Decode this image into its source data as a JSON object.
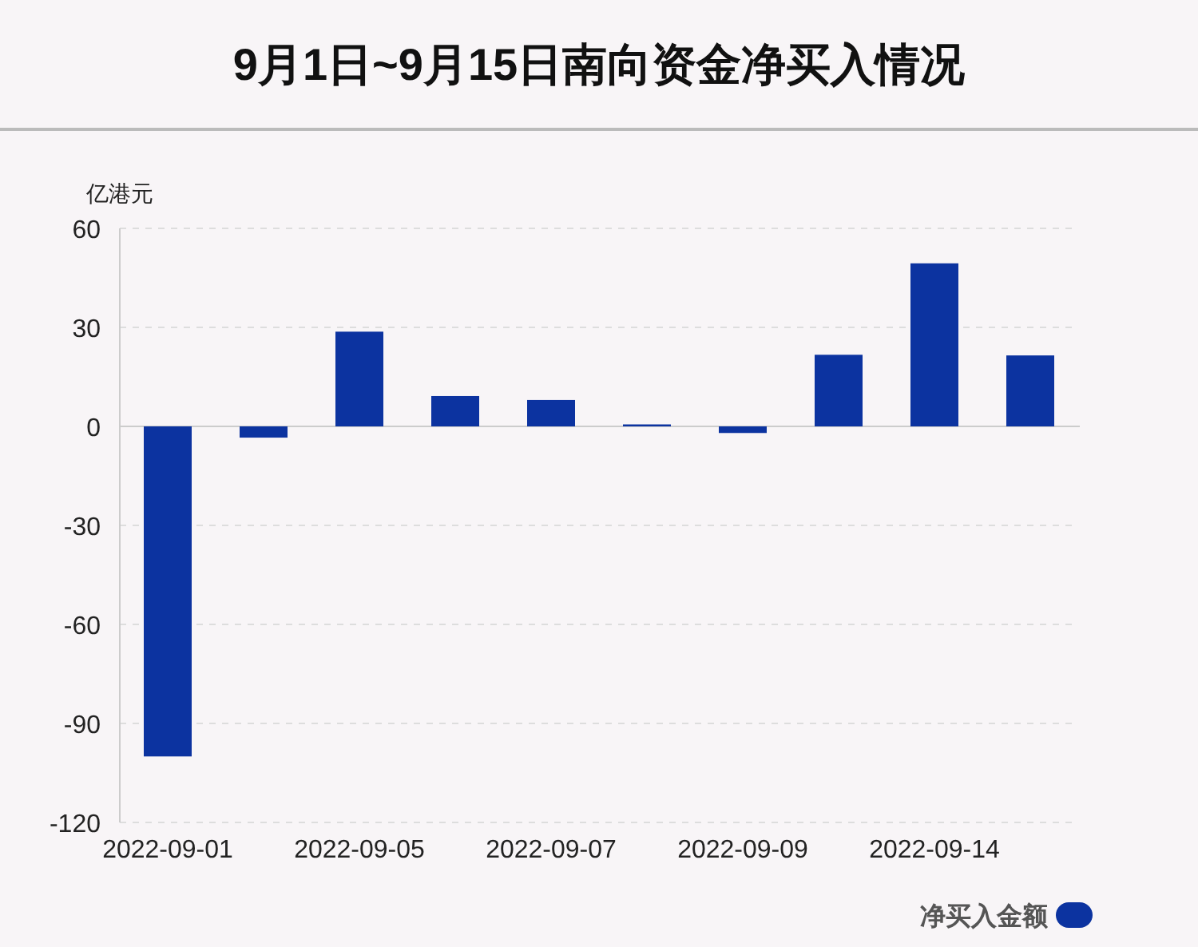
{
  "chart_data": {
    "type": "bar",
    "title": "9月1日~9月15日南向资金净买入情况",
    "ylabel": "亿港元",
    "categories": [
      "2022-09-01",
      null,
      "2022-09-05",
      null,
      "2022-09-07",
      null,
      "2022-09-09",
      null,
      "2022-09-14",
      null
    ],
    "series": [
      {
        "name": "净买入金额",
        "color": "#0c33a0",
        "values": [
          -100,
          -3.4,
          28.7,
          9.2,
          8,
          0.6,
          -2,
          21.7,
          49.4,
          21.5
        ]
      }
    ],
    "ylim": [
      -120,
      60
    ],
    "yticks": [
      -120,
      -90,
      -60,
      -30,
      0,
      30,
      60
    ],
    "grid": "y",
    "legend": "bottom right"
  }
}
